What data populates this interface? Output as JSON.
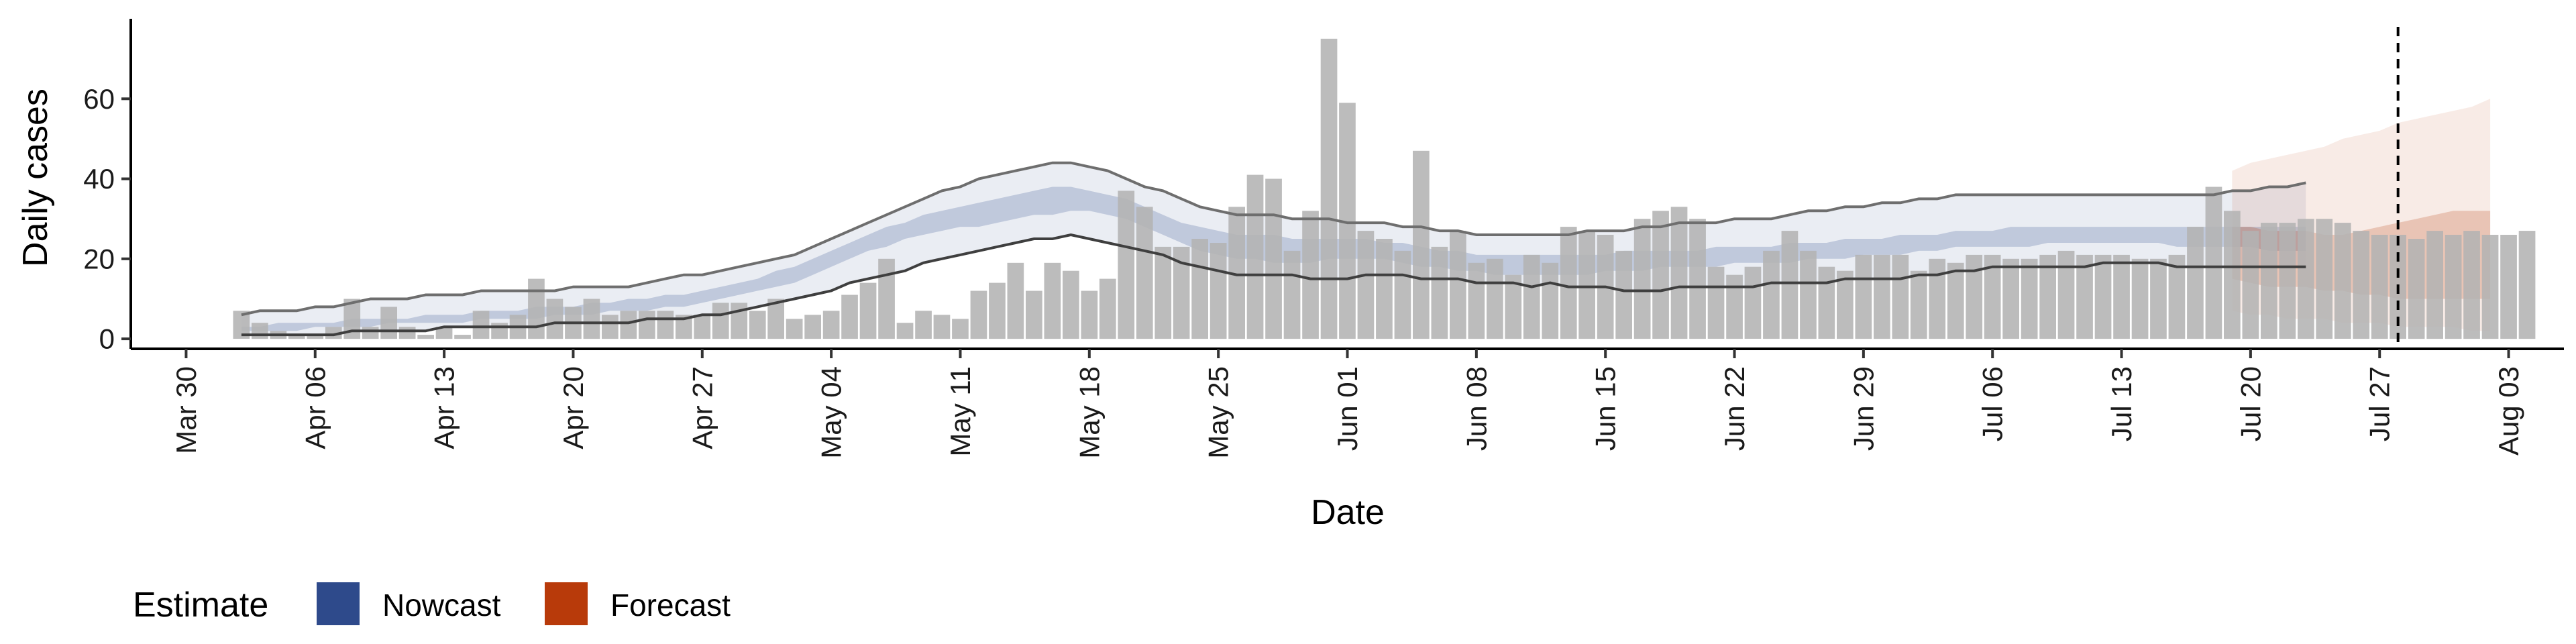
{
  "chart_data": {
    "type": "bar",
    "xlabel": "Date",
    "ylabel": "Daily cases",
    "ylim": [
      -2.5,
      80
    ],
    "yticks": [
      0,
      20,
      40,
      60
    ],
    "xlim": [
      "2020-03-27",
      "2020-08-06"
    ],
    "xticks": [
      "2020-03-30",
      "2020-04-06",
      "2020-04-13",
      "2020-04-20",
      "2020-04-27",
      "2020-05-04",
      "2020-05-11",
      "2020-05-18",
      "2020-05-25",
      "2020-06-01",
      "2020-06-08",
      "2020-06-15",
      "2020-06-22",
      "2020-06-29",
      "2020-07-06",
      "2020-07-13",
      "2020-07-20",
      "2020-07-27",
      "2020-08-03"
    ],
    "xtick_labels": [
      "Mar 30",
      "Apr 06",
      "Apr 13",
      "Apr 20",
      "Apr 27",
      "May 04",
      "May 11",
      "May 18",
      "May 25",
      "Jun 01",
      "Jun 08",
      "Jun 15",
      "Jun 22",
      "Jun 29",
      "Jul 06",
      "Jul 13",
      "Jul 20",
      "Jul 27",
      "Aug 03"
    ],
    "grid": false,
    "reference_line": {
      "date": "2020-07-28",
      "style": "dashed"
    },
    "bars": {
      "start": "2020-04-02",
      "values": [
        7,
        4,
        2,
        1,
        1,
        3,
        10,
        3,
        8,
        3,
        1,
        3,
        1,
        7,
        4,
        6,
        15,
        10,
        8,
        10,
        6,
        7,
        7,
        7,
        6,
        6,
        9,
        9,
        7,
        10,
        5,
        6,
        7,
        11,
        14,
        20,
        4,
        7,
        6,
        5,
        12,
        14,
        19,
        12,
        19,
        17,
        12,
        15,
        37,
        33,
        23,
        23,
        25,
        24,
        33,
        41,
        40,
        22,
        32,
        75,
        59,
        27,
        25,
        22,
        47,
        23,
        27,
        19,
        20,
        16,
        21,
        19,
        28,
        27,
        26,
        22,
        30,
        32,
        33,
        30,
        18,
        16,
        18,
        22,
        27,
        22,
        18,
        17,
        21,
        21,
        21,
        17,
        20,
        19,
        21,
        21,
        20,
        20,
        21,
        22,
        21,
        21,
        21,
        20,
        20,
        21,
        28,
        38,
        32,
        27,
        29,
        29,
        30,
        30,
        29,
        27,
        26,
        26,
        25,
        27,
        26,
        27,
        26,
        26,
        27
      ]
    },
    "series": [
      {
        "name": "Nowcast",
        "color": "#2e4a8b",
        "start": "2020-04-02",
        "outer_lower": [
          1,
          1,
          1,
          1,
          1,
          1,
          2,
          2,
          2,
          2,
          2,
          3,
          3,
          3,
          3,
          3,
          3,
          4,
          4,
          4,
          4,
          4,
          5,
          5,
          5,
          6,
          6,
          7,
          8,
          9,
          10,
          11,
          12,
          14,
          15,
          16,
          17,
          19,
          20,
          21,
          22,
          23,
          24,
          25,
          25,
          26,
          25,
          24,
          23,
          22,
          21,
          19,
          18,
          17,
          16,
          16,
          16,
          16,
          15,
          15,
          15,
          16,
          16,
          16,
          15,
          15,
          15,
          14,
          14,
          14,
          13,
          14,
          13,
          13,
          13,
          12,
          12,
          12,
          13,
          13,
          13,
          13,
          13,
          14,
          14,
          14,
          14,
          15,
          15,
          15,
          15,
          16,
          16,
          17,
          17,
          18,
          18,
          18,
          18,
          18,
          18,
          19,
          19,
          19,
          19,
          18,
          18,
          18,
          18,
          18,
          18,
          18,
          18
        ],
        "inner_lower": [
          2,
          2,
          2,
          2,
          3,
          3,
          3,
          3,
          4,
          4,
          4,
          4,
          4,
          5,
          5,
          5,
          5,
          6,
          6,
          6,
          7,
          7,
          7,
          8,
          8,
          9,
          10,
          11,
          12,
          13,
          14,
          16,
          18,
          20,
          22,
          23,
          25,
          26,
          27,
          28,
          28,
          29,
          30,
          31,
          31,
          32,
          32,
          31,
          30,
          28,
          26,
          24,
          22,
          21,
          20,
          20,
          19,
          19,
          19,
          20,
          20,
          20,
          20,
          19,
          18,
          18,
          17,
          17,
          16,
          16,
          16,
          16,
          16,
          16,
          17,
          17,
          17,
          18,
          18,
          18,
          18,
          19,
          19,
          19,
          19,
          20,
          20,
          20,
          21,
          21,
          21,
          22,
          22,
          23,
          23,
          23,
          23,
          23,
          24,
          24,
          24,
          24,
          24,
          24,
          24,
          23,
          23,
          23,
          23,
          23,
          22,
          22,
          22
        ],
        "inner_upper": [
          3,
          3,
          4,
          4,
          4,
          4,
          5,
          5,
          5,
          5,
          6,
          6,
          6,
          7,
          7,
          7,
          8,
          8,
          8,
          9,
          9,
          10,
          10,
          11,
          11,
          12,
          13,
          14,
          15,
          17,
          18,
          20,
          22,
          24,
          26,
          28,
          29,
          31,
          32,
          33,
          34,
          35,
          36,
          37,
          38,
          38,
          37,
          36,
          35,
          33,
          31,
          29,
          28,
          27,
          26,
          26,
          26,
          25,
          25,
          25,
          25,
          25,
          24,
          24,
          23,
          22,
          22,
          21,
          21,
          21,
          21,
          21,
          21,
          21,
          21,
          22,
          22,
          22,
          22,
          22,
          23,
          23,
          23,
          23,
          24,
          24,
          24,
          25,
          25,
          25,
          26,
          26,
          26,
          27,
          27,
          27,
          28,
          28,
          28,
          28,
          28,
          28,
          28,
          28,
          28,
          28,
          28,
          28,
          28,
          28,
          28,
          28,
          28
        ],
        "outer_upper": [
          6,
          7,
          7,
          7,
          8,
          8,
          9,
          10,
          10,
          10,
          11,
          11,
          11,
          12,
          12,
          12,
          12,
          12,
          13,
          13,
          13,
          13,
          14,
          15,
          16,
          16,
          17,
          18,
          19,
          20,
          21,
          23,
          25,
          27,
          29,
          31,
          33,
          35,
          37,
          38,
          40,
          41,
          42,
          43,
          44,
          44,
          43,
          42,
          40,
          38,
          37,
          35,
          33,
          32,
          31,
          31,
          31,
          30,
          30,
          30,
          29,
          29,
          29,
          28,
          28,
          27,
          27,
          26,
          26,
          26,
          26,
          26,
          26,
          27,
          27,
          27,
          28,
          28,
          29,
          29,
          29,
          30,
          30,
          30,
          31,
          32,
          32,
          33,
          33,
          34,
          34,
          35,
          35,
          36,
          36,
          36,
          36,
          36,
          36,
          36,
          36,
          36,
          36,
          36,
          36,
          36,
          36,
          36,
          37,
          37,
          38,
          38,
          39
        ]
      },
      {
        "name": "Forecast",
        "color": "#b83a0a",
        "start": "2020-07-19",
        "outer_lower": [
          7,
          6,
          6,
          5,
          5,
          5,
          4,
          4,
          4,
          3,
          3,
          3,
          3,
          2,
          2
        ],
        "inner_lower": [
          15,
          14,
          13,
          13,
          13,
          12,
          12,
          11,
          11,
          10,
          10,
          10,
          10,
          10,
          10
        ],
        "inner_upper": [
          28,
          28,
          27,
          27,
          27,
          26,
          26,
          27,
          28,
          29,
          30,
          31,
          32,
          32,
          32
        ],
        "outer_upper": [
          42,
          44,
          45,
          46,
          47,
          48,
          50,
          51,
          52,
          54,
          55,
          56,
          57,
          58,
          60
        ]
      }
    ],
    "legend": {
      "title": "Estimate",
      "position": "bottom-left",
      "items": [
        "Nowcast",
        "Forecast"
      ]
    },
    "colors": {
      "bars": "#b3b3b3",
      "nowcast": "#2e4a8b",
      "forecast": "#b83a0a",
      "line": "#555555",
      "axis": "#000000"
    }
  }
}
